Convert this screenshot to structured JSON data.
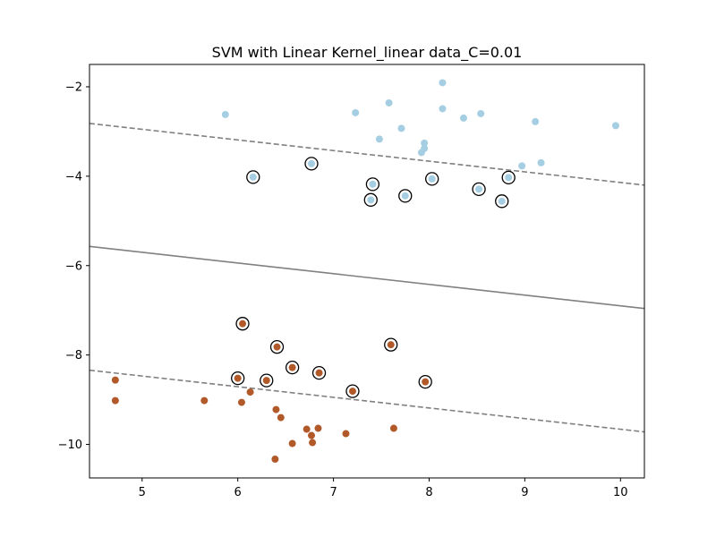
{
  "chart_data": {
    "type": "scatter",
    "title": "SVM with Linear Kernel_linear data_C=0.01",
    "xlabel": "",
    "ylabel": "",
    "xlim": [
      4.45,
      10.25
    ],
    "ylim": [
      -10.75,
      -1.5
    ],
    "xticks": [
      5,
      6,
      7,
      8,
      9,
      10
    ],
    "yticks": [
      -2,
      -4,
      -6,
      -8,
      -10
    ],
    "grid": false,
    "colors": {
      "class_0": "#a6cee3",
      "class_1": "#b15928",
      "boundary": "#808080",
      "support_ring": "#000000"
    },
    "series": [
      {
        "class": "class_0",
        "points": [
          [
            5.87,
            -2.62
          ],
          [
            7.23,
            -2.58
          ],
          [
            7.58,
            -2.36
          ],
          [
            8.14,
            -1.91
          ],
          [
            8.14,
            -2.49
          ],
          [
            8.36,
            -2.7
          ],
          [
            8.54,
            -2.6
          ],
          [
            9.11,
            -2.78
          ],
          [
            9.95,
            -2.87
          ],
          [
            7.71,
            -2.93
          ],
          [
            7.48,
            -3.17
          ],
          [
            7.95,
            -3.26
          ],
          [
            7.95,
            -3.38
          ],
          [
            7.92,
            -3.47
          ],
          [
            8.97,
            -3.77
          ],
          [
            9.17,
            -3.7
          ],
          [
            6.16,
            -4.02
          ],
          [
            6.77,
            -3.72
          ],
          [
            7.41,
            -4.18
          ],
          [
            8.03,
            -4.06
          ],
          [
            8.83,
            -4.03
          ],
          [
            7.39,
            -4.53
          ],
          [
            7.75,
            -4.44
          ],
          [
            8.52,
            -4.29
          ],
          [
            8.76,
            -4.56
          ]
        ]
      },
      {
        "class": "class_1",
        "points": [
          [
            6.05,
            -7.3
          ],
          [
            6.41,
            -7.82
          ],
          [
            7.6,
            -7.77
          ],
          [
            6.57,
            -8.28
          ],
          [
            6.85,
            -8.4
          ],
          [
            6.0,
            -8.52
          ],
          [
            6.3,
            -8.57
          ],
          [
            7.2,
            -8.81
          ],
          [
            7.96,
            -8.6
          ],
          [
            4.72,
            -8.56
          ],
          [
            4.72,
            -9.02
          ],
          [
            5.65,
            -9.02
          ],
          [
            6.04,
            -9.06
          ],
          [
            6.13,
            -8.83
          ],
          [
            6.4,
            -9.22
          ],
          [
            6.45,
            -9.4
          ],
          [
            6.72,
            -9.66
          ],
          [
            6.77,
            -9.8
          ],
          [
            6.78,
            -9.96
          ],
          [
            6.84,
            -9.64
          ],
          [
            6.57,
            -9.98
          ],
          [
            7.13,
            -9.76
          ],
          [
            7.63,
            -9.64
          ],
          [
            6.39,
            -10.33
          ]
        ]
      }
    ],
    "support_vectors": [
      [
        6.16,
        -4.02
      ],
      [
        6.77,
        -3.72
      ],
      [
        7.41,
        -4.18
      ],
      [
        8.03,
        -4.06
      ],
      [
        8.83,
        -4.03
      ],
      [
        7.39,
        -4.53
      ],
      [
        7.75,
        -4.44
      ],
      [
        8.52,
        -4.29
      ],
      [
        8.76,
        -4.56
      ],
      [
        6.05,
        -7.3
      ],
      [
        6.41,
        -7.82
      ],
      [
        7.6,
        -7.77
      ],
      [
        6.57,
        -8.28
      ],
      [
        6.85,
        -8.4
      ],
      [
        6.0,
        -8.52
      ],
      [
        6.3,
        -8.57
      ],
      [
        7.2,
        -8.81
      ],
      [
        7.96,
        -8.6
      ]
    ],
    "lines": [
      {
        "kind": "margin-upper",
        "style": "dashed",
        "points": [
          [
            4.45,
            -2.82
          ],
          [
            10.25,
            -4.2
          ]
        ]
      },
      {
        "kind": "decision-boundary",
        "style": "solid",
        "points": [
          [
            4.45,
            -5.57
          ],
          [
            10.25,
            -6.96
          ]
        ]
      },
      {
        "kind": "margin-lower",
        "style": "dashed",
        "points": [
          [
            4.45,
            -8.34
          ],
          [
            10.25,
            -9.72
          ]
        ]
      }
    ]
  }
}
